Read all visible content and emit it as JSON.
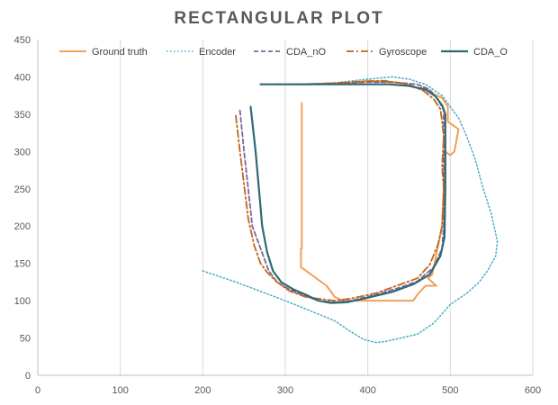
{
  "chart_data": {
    "type": "scatter",
    "title": "RECTANGULAR PLOT",
    "xlabel": "",
    "ylabel": "",
    "xlim": [
      0,
      600
    ],
    "ylim": [
      0,
      450
    ],
    "x_ticks": [
      0,
      100,
      200,
      300,
      400,
      500,
      600
    ],
    "y_ticks": [
      0,
      50,
      100,
      150,
      200,
      250,
      300,
      350,
      400,
      450
    ],
    "grid": "vertical",
    "legend_position": "top",
    "colors": {
      "ground_truth": "#F0A05A",
      "encoder": "#4BACC6",
      "cda_no": "#8064A2",
      "gyroscope": "#C0661A",
      "cda_o": "#2F6A74",
      "grid": "#D9D9D9",
      "axis": "#BFBFBF"
    },
    "series": [
      {
        "name": "Ground truth",
        "style": "solid",
        "points": [
          [
            320,
            365
          ],
          [
            320,
            170
          ],
          [
            319,
            170
          ],
          [
            319,
            145
          ],
          [
            350,
            120
          ],
          [
            360,
            105
          ],
          [
            370,
            100
          ],
          [
            455,
            100
          ],
          [
            460,
            108
          ],
          [
            470,
            120
          ],
          [
            483,
            120
          ],
          [
            473,
            130
          ],
          [
            478,
            135
          ],
          [
            490,
            200
          ],
          [
            494,
            300
          ],
          [
            500,
            295
          ],
          [
            505,
            300
          ],
          [
            510,
            330
          ],
          [
            497,
            340
          ],
          [
            497,
            360
          ],
          [
            490,
            372
          ],
          [
            480,
            377
          ],
          [
            470,
            385
          ],
          [
            460,
            385
          ],
          [
            440,
            392
          ],
          [
            400,
            395
          ],
          [
            380,
            392
          ],
          [
            350,
            391
          ],
          [
            330,
            390
          ],
          [
            290,
            390
          ]
        ]
      },
      {
        "name": "Encoder",
        "style": "dotted",
        "points": [
          [
            200,
            140
          ],
          [
            240,
            125
          ],
          [
            300,
            100
          ],
          [
            340,
            82
          ],
          [
            360,
            73
          ],
          [
            380,
            58
          ],
          [
            395,
            48
          ],
          [
            410,
            44
          ],
          [
            420,
            45
          ],
          [
            440,
            50
          ],
          [
            460,
            55
          ],
          [
            480,
            70
          ],
          [
            500,
            95
          ],
          [
            520,
            110
          ],
          [
            535,
            125
          ],
          [
            545,
            140
          ],
          [
            555,
            160
          ],
          [
            557,
            180
          ],
          [
            550,
            215
          ],
          [
            540,
            250
          ],
          [
            530,
            290
          ],
          [
            520,
            320
          ],
          [
            510,
            345
          ],
          [
            500,
            360
          ],
          [
            490,
            375
          ],
          [
            470,
            390
          ],
          [
            450,
            397
          ],
          [
            430,
            400
          ],
          [
            400,
            397
          ],
          [
            360,
            392
          ],
          [
            310,
            390
          ]
        ]
      },
      {
        "name": "CDA_nO",
        "style": "dashed",
        "points": [
          [
            245,
            355
          ],
          [
            250,
            300
          ],
          [
            255,
            250
          ],
          [
            260,
            200
          ],
          [
            270,
            170
          ],
          [
            280,
            140
          ],
          [
            290,
            125
          ],
          [
            305,
            115
          ],
          [
            320,
            108
          ],
          [
            340,
            100
          ],
          [
            360,
            98
          ],
          [
            380,
            100
          ],
          [
            410,
            108
          ],
          [
            440,
            118
          ],
          [
            460,
            126
          ],
          [
            480,
            145
          ],
          [
            490,
            170
          ],
          [
            492,
            200
          ],
          [
            492,
            300
          ],
          [
            492,
            355
          ],
          [
            485,
            370
          ],
          [
            475,
            383
          ],
          [
            460,
            390
          ],
          [
            430,
            393
          ],
          [
            400,
            393
          ],
          [
            360,
            391
          ],
          [
            320,
            390
          ]
        ]
      },
      {
        "name": "Gyroscope",
        "style": "dashdot",
        "points": [
          [
            240,
            348
          ],
          [
            245,
            300
          ],
          [
            250,
            255
          ],
          [
            255,
            210
          ],
          [
            262,
            175
          ],
          [
            270,
            150
          ],
          [
            278,
            138
          ],
          [
            290,
            125
          ],
          [
            305,
            113
          ],
          [
            325,
            105
          ],
          [
            345,
            102
          ],
          [
            360,
            100
          ],
          [
            380,
            103
          ],
          [
            410,
            110
          ],
          [
            440,
            122
          ],
          [
            460,
            130
          ],
          [
            475,
            148
          ],
          [
            485,
            175
          ],
          [
            490,
            200
          ],
          [
            492,
            250
          ],
          [
            490,
            280
          ],
          [
            492,
            320
          ],
          [
            490,
            340
          ],
          [
            488,
            357
          ],
          [
            480,
            370
          ],
          [
            468,
            381
          ],
          [
            450,
            390
          ],
          [
            420,
            395
          ],
          [
            380,
            393
          ],
          [
            345,
            391
          ],
          [
            320,
            390
          ]
        ]
      },
      {
        "name": "CDA_O",
        "style": "solid",
        "points": [
          [
            258,
            360
          ],
          [
            264,
            300
          ],
          [
            268,
            250
          ],
          [
            272,
            200
          ],
          [
            278,
            165
          ],
          [
            285,
            140
          ],
          [
            295,
            125
          ],
          [
            310,
            115
          ],
          [
            325,
            108
          ],
          [
            340,
            100
          ],
          [
            355,
            97
          ],
          [
            375,
            98
          ],
          [
            400,
            104
          ],
          [
            430,
            112
          ],
          [
            455,
            122
          ],
          [
            475,
            135
          ],
          [
            488,
            160
          ],
          [
            493,
            185
          ],
          [
            494,
            250
          ],
          [
            494,
            300
          ],
          [
            494,
            350
          ],
          [
            490,
            362
          ],
          [
            482,
            374
          ],
          [
            470,
            383
          ],
          [
            450,
            388
          ],
          [
            425,
            390
          ],
          [
            390,
            390
          ],
          [
            350,
            390
          ],
          [
            300,
            390
          ],
          [
            270,
            390
          ]
        ]
      }
    ]
  }
}
